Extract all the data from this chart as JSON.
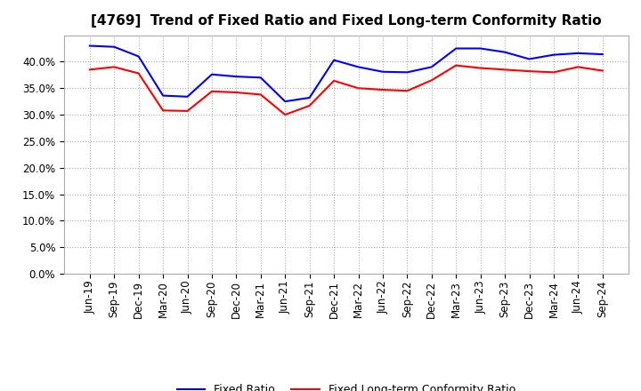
{
  "title": "[4769]  Trend of Fixed Ratio and Fixed Long-term Conformity Ratio",
  "x_labels": [
    "Jun-19",
    "Sep-19",
    "Dec-19",
    "Mar-20",
    "Jun-20",
    "Sep-20",
    "Dec-20",
    "Mar-21",
    "Jun-21",
    "Sep-21",
    "Dec-21",
    "Mar-22",
    "Jun-22",
    "Sep-22",
    "Dec-22",
    "Mar-23",
    "Jun-23",
    "Sep-23",
    "Dec-23",
    "Mar-24",
    "Jun-24",
    "Sep-24"
  ],
  "fixed_ratio": [
    0.43,
    0.428,
    0.41,
    0.336,
    0.334,
    0.376,
    0.372,
    0.37,
    0.325,
    0.332,
    0.403,
    0.39,
    0.381,
    0.38,
    0.39,
    0.425,
    0.425,
    0.418,
    0.405,
    0.413,
    0.416,
    0.414
  ],
  "fixed_lt_ratio": [
    0.385,
    0.39,
    0.378,
    0.308,
    0.307,
    0.344,
    0.342,
    0.338,
    0.3,
    0.317,
    0.364,
    0.35,
    0.347,
    0.345,
    0.365,
    0.393,
    0.388,
    0.385,
    0.382,
    0.38,
    0.39,
    0.383
  ],
  "fixed_ratio_color": "#0000FF",
  "fixed_lt_ratio_color": "#FF0000",
  "ylim": [
    0.0,
    0.45
  ],
  "yticks": [
    0.0,
    0.05,
    0.1,
    0.15,
    0.2,
    0.25,
    0.3,
    0.35,
    0.4
  ],
  "grid_color": "#aaaaaa",
  "background_color": "#ffffff",
  "legend_fixed_ratio": "Fixed Ratio",
  "legend_fixed_lt_ratio": "Fixed Long-term Conformity Ratio",
  "title_fontsize": 11,
  "tick_fontsize": 8.5,
  "line_width": 1.5
}
